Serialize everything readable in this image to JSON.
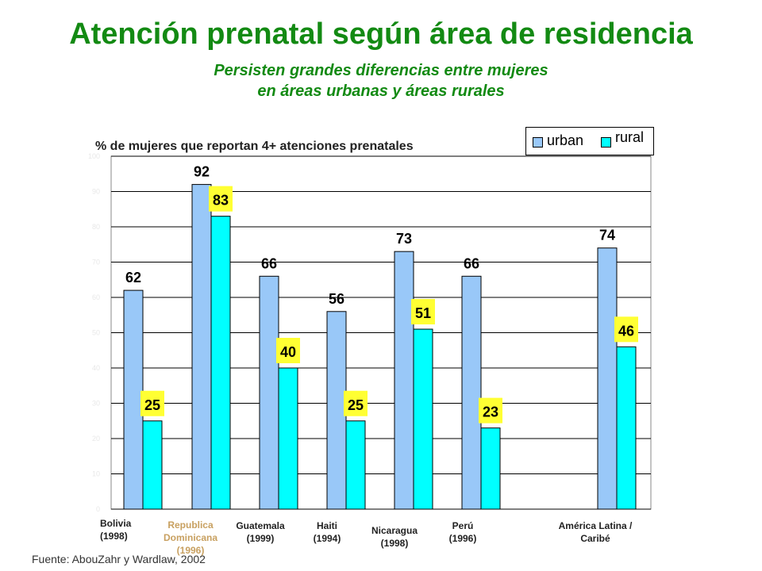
{
  "title": "Atención prenatal según área de residencia",
  "subtitle_line1": "Persisten grandes diferencias entre mujeres",
  "subtitle_line2": "en áreas urbanas y áreas rurales",
  "source": "Fuente: AbouZahr y Wardlaw, 2002",
  "colors": {
    "title": "#138a13",
    "urban": "#99c8f8",
    "rural": "#00ffff",
    "label_box": "#ffff33"
  },
  "chart_data": {
    "type": "bar",
    "ylabel": "% de mujeres que reportan 4+ atenciones prenatales",
    "ylim": [
      0,
      100
    ],
    "yticks": [
      "0",
      "10",
      "20",
      "30",
      "40",
      "50",
      "60",
      "70",
      "80",
      "90",
      "100"
    ],
    "grid": true,
    "legend_position": "top-right",
    "categories": [
      [
        "Bolivia",
        "(1998)"
      ],
      [
        "Republica",
        "Dominicana",
        "(1996)"
      ],
      [
        "Guatemala",
        "(1999)"
      ],
      [
        "Haiti",
        "(1994)"
      ],
      [
        "Nicaragua",
        "(1998)"
      ],
      [
        "Perú",
        "(1996)"
      ],
      [
        "América Latina /",
        "Caribé"
      ]
    ],
    "series": [
      {
        "name": "urban",
        "values": [
          62,
          92,
          66,
          56,
          73,
          66,
          74
        ]
      },
      {
        "name": "rural",
        "values": [
          25,
          83,
          40,
          25,
          51,
          23,
          46
        ]
      }
    ]
  }
}
